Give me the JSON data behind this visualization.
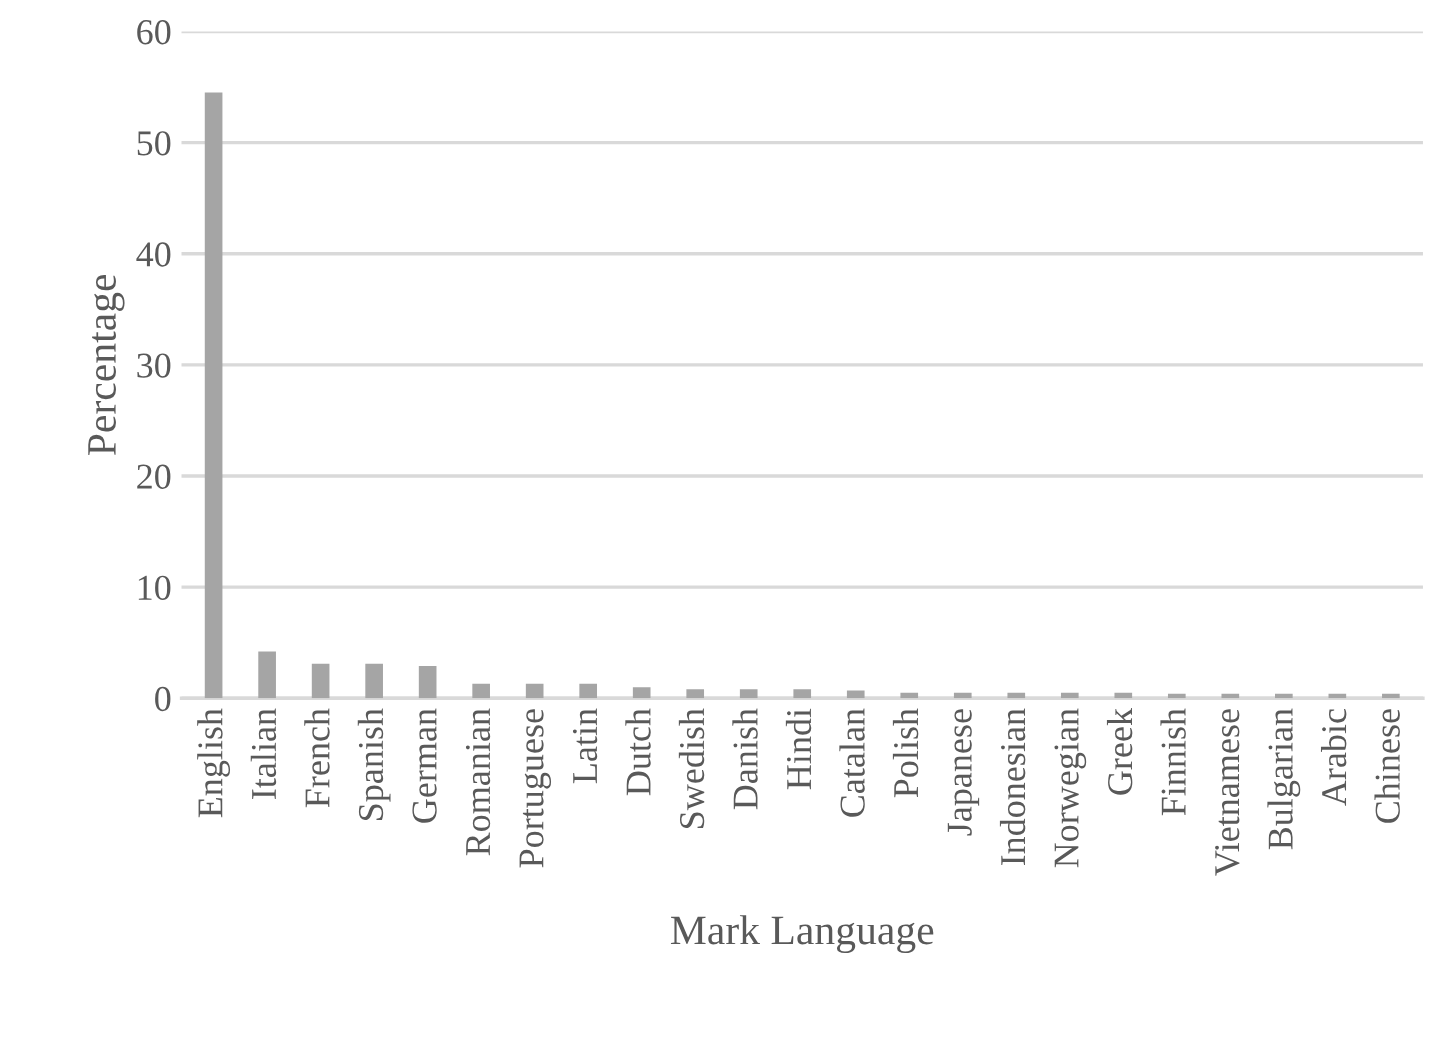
{
  "chart_data": {
    "type": "bar",
    "xlabel": "Mark Language",
    "ylabel": "Percentage",
    "categories": [
      "English",
      "Italian",
      "French",
      "Spanish",
      "German",
      "Romanian",
      "Portuguese",
      "Latin",
      "Dutch",
      "Swedish",
      "Danish",
      "Hindi",
      "Catalan",
      "Polish",
      "Japanese",
      "Indonesian",
      "Norwegian",
      "Greek",
      "Finnish",
      "Vietnamese",
      "Bulgarian",
      "Arabic",
      "Chinese"
    ],
    "values": [
      54.5,
      4.2,
      3.1,
      3.1,
      2.9,
      1.3,
      1.3,
      1.3,
      1.0,
      0.8,
      0.8,
      0.8,
      0.7,
      0.5,
      0.5,
      0.5,
      0.5,
      0.5,
      0.4,
      0.4,
      0.4,
      0.4,
      0.4
    ],
    "color": "#a5a5a5",
    "ylim": [
      0,
      60
    ],
    "yticks": [
      0,
      10,
      20,
      30,
      40,
      50,
      60
    ],
    "grid": "y",
    "legend": false
  }
}
